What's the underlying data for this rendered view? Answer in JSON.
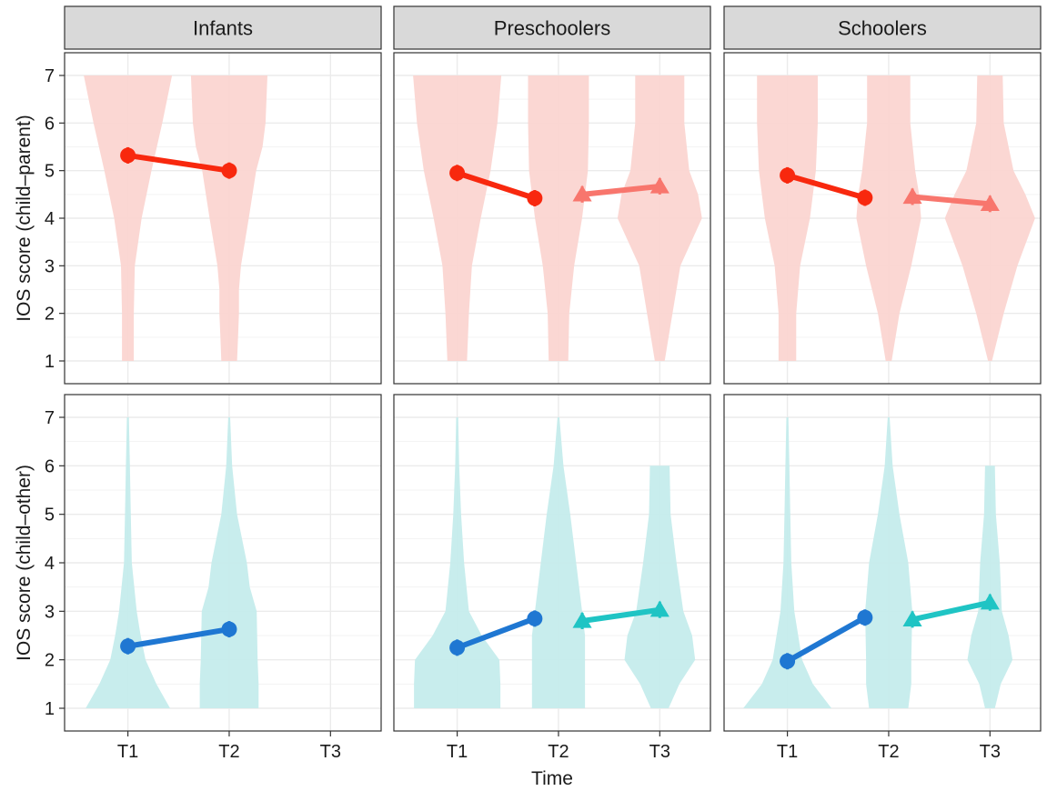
{
  "chart_data": {
    "type": "violin",
    "xlabel": "Time",
    "x_categories": [
      "T1",
      "T2",
      "T3"
    ],
    "y_ticks": [
      "1",
      "2",
      "3",
      "4",
      "5",
      "6",
      "7"
    ],
    "ylim": [
      1,
      7
    ],
    "grid": true,
    "facet_columns": [
      "Infants",
      "Preschoolers",
      "Schoolers"
    ],
    "facet_rows": [
      {
        "key": "parent",
        "ylabel": "IOS score (child–parent)"
      },
      {
        "key": "other",
        "ylabel": "IOS score (child–other)"
      }
    ],
    "colors": {
      "parent_line_1": "#f8280e",
      "parent_line_2": "#f8766d",
      "parent_violin": "#fbd5d1",
      "other_line_1": "#1f77d2",
      "other_line_2": "#1fc4c4",
      "other_violin": "#c5ecec",
      "strip_fill": "#d9d9d9",
      "grid": "#ebebeb"
    },
    "panels": [
      {
        "row": "parent",
        "column": "Infants",
        "violins": [
          {
            "x": "T1",
            "min": 1,
            "max": 7,
            "width_at": [
              [
                1,
                0.12
              ],
              [
                2,
                0.12
              ],
              [
                3,
                0.14
              ],
              [
                4,
                0.28
              ],
              [
                5,
                0.48
              ],
              [
                6,
                0.7
              ],
              [
                7,
                0.9
              ]
            ]
          },
          {
            "x": "T2",
            "min": 1,
            "max": 7,
            "width_at": [
              [
                1,
                0.16
              ],
              [
                1.5,
                0.18
              ],
              [
                2,
                0.2
              ],
              [
                2.5,
                0.2
              ],
              [
                3,
                0.24
              ],
              [
                4,
                0.4
              ],
              [
                5,
                0.55
              ],
              [
                5.5,
                0.68
              ],
              [
                6,
                0.74
              ],
              [
                7,
                0.78
              ]
            ]
          }
        ],
        "series": [
          {
            "name": "T1–T2",
            "marker": "circle",
            "points": [
              {
                "x": "T1",
                "y": 5.32
              },
              {
                "x": "T2",
                "y": 5.0
              }
            ]
          }
        ]
      },
      {
        "row": "parent",
        "column": "Preschoolers",
        "violins": [
          {
            "x": "T1",
            "min": 1,
            "max": 7,
            "width_at": [
              [
                1,
                0.2
              ],
              [
                2,
                0.24
              ],
              [
                3,
                0.3
              ],
              [
                4,
                0.48
              ],
              [
                5,
                0.68
              ],
              [
                6,
                0.82
              ],
              [
                7,
                0.9
              ]
            ]
          },
          {
            "x": "T2",
            "min": 1,
            "max": 7,
            "width_at": [
              [
                1,
                0.2
              ],
              [
                2,
                0.22
              ],
              [
                3,
                0.32
              ],
              [
                4,
                0.48
              ],
              [
                4.5,
                0.54
              ],
              [
                5,
                0.6
              ],
              [
                6,
                0.62
              ],
              [
                7,
                0.62
              ]
            ]
          },
          {
            "x": "T3",
            "min": 1,
            "max": 7,
            "width_at": [
              [
                1,
                0.1
              ],
              [
                2,
                0.26
              ],
              [
                3,
                0.42
              ],
              [
                4,
                0.86
              ],
              [
                4.5,
                0.78
              ],
              [
                5,
                0.6
              ],
              [
                6,
                0.5
              ],
              [
                7,
                0.5
              ]
            ]
          }
        ],
        "series": [
          {
            "name": "T1–T2",
            "marker": "circle",
            "points": [
              {
                "x": "T1",
                "y": 4.95
              },
              {
                "x": "T2",
                "y": 4.42
              }
            ]
          },
          {
            "name": "T2–T3",
            "marker": "triangle",
            "points": [
              {
                "x": "T2",
                "y": 4.5
              },
              {
                "x": "T3",
                "y": 4.67
              }
            ]
          }
        ]
      },
      {
        "row": "parent",
        "column": "Schoolers",
        "violins": [
          {
            "x": "T1",
            "min": 1,
            "max": 7,
            "width_at": [
              [
                1,
                0.18
              ],
              [
                2,
                0.18
              ],
              [
                3,
                0.26
              ],
              [
                4,
                0.46
              ],
              [
                5,
                0.58
              ],
              [
                6,
                0.62
              ],
              [
                7,
                0.62
              ]
            ]
          },
          {
            "x": "T2",
            "min": 1,
            "max": 7,
            "width_at": [
              [
                1,
                0.06
              ],
              [
                2,
                0.22
              ],
              [
                3,
                0.46
              ],
              [
                4,
                0.66
              ],
              [
                4.5,
                0.62
              ],
              [
                5,
                0.54
              ],
              [
                6,
                0.44
              ],
              [
                7,
                0.44
              ]
            ]
          },
          {
            "x": "T3",
            "min": 1,
            "max": 7,
            "width_at": [
              [
                1,
                0.04
              ],
              [
                2,
                0.28
              ],
              [
                3,
                0.56
              ],
              [
                4,
                0.92
              ],
              [
                4.5,
                0.72
              ],
              [
                5,
                0.48
              ],
              [
                6,
                0.28
              ],
              [
                7,
                0.26
              ]
            ]
          }
        ],
        "series": [
          {
            "name": "T1–T2",
            "marker": "circle",
            "points": [
              {
                "x": "T1",
                "y": 4.9
              },
              {
                "x": "T2",
                "y": 4.43
              }
            ]
          },
          {
            "name": "T2–T3",
            "marker": "triangle",
            "points": [
              {
                "x": "T2",
                "y": 4.45
              },
              {
                "x": "T3",
                "y": 4.3
              }
            ]
          }
        ]
      },
      {
        "row": "other",
        "column": "Infants",
        "violins": [
          {
            "x": "T1",
            "min": 1,
            "max": 7,
            "width_at": [
              [
                1,
                0.86
              ],
              [
                1.5,
                0.58
              ],
              [
                2,
                0.36
              ],
              [
                2.5,
                0.26
              ],
              [
                3,
                0.18
              ],
              [
                4,
                0.08
              ],
              [
                5,
                0.06
              ],
              [
                6,
                0.04
              ],
              [
                7,
                0.02
              ]
            ]
          },
          {
            "x": "T2",
            "min": 1,
            "max": 7,
            "width_at": [
              [
                1,
                0.6
              ],
              [
                1.5,
                0.6
              ],
              [
                2,
                0.58
              ],
              [
                3,
                0.56
              ],
              [
                3.5,
                0.42
              ],
              [
                4,
                0.36
              ],
              [
                4.5,
                0.26
              ],
              [
                5,
                0.16
              ],
              [
                6,
                0.06
              ],
              [
                7,
                0.02
              ]
            ]
          }
        ],
        "series": [
          {
            "name": "T1–T2",
            "marker": "circle",
            "points": [
              {
                "x": "T1",
                "y": 2.28
              },
              {
                "x": "T2",
                "y": 2.63
              }
            ]
          }
        ]
      },
      {
        "row": "other",
        "column": "Preschoolers",
        "violins": [
          {
            "x": "T1",
            "min": 1,
            "max": 7,
            "width_at": [
              [
                1,
                0.88
              ],
              [
                1.5,
                0.88
              ],
              [
                2,
                0.86
              ],
              [
                2.5,
                0.5
              ],
              [
                3,
                0.24
              ],
              [
                4,
                0.14
              ],
              [
                5,
                0.08
              ],
              [
                6,
                0.04
              ],
              [
                7,
                0.02
              ]
            ]
          },
          {
            "x": "T2",
            "min": 1,
            "max": 7,
            "width_at": [
              [
                1,
                0.54
              ],
              [
                2,
                0.54
              ],
              [
                2.5,
                0.54
              ],
              [
                3,
                0.48
              ],
              [
                4,
                0.36
              ],
              [
                5,
                0.24
              ],
              [
                6,
                0.1
              ],
              [
                7,
                0.02
              ]
            ]
          },
          {
            "x": "T3",
            "min": 1,
            "max": 6,
            "width_at": [
              [
                1,
                0.18
              ],
              [
                1.5,
                0.4
              ],
              [
                2,
                0.72
              ],
              [
                2.5,
                0.66
              ],
              [
                3,
                0.48
              ],
              [
                4,
                0.34
              ],
              [
                5,
                0.22
              ],
              [
                6,
                0.2
              ]
            ]
          }
        ],
        "series": [
          {
            "name": "T1–T2",
            "marker": "circle",
            "points": [
              {
                "x": "T1",
                "y": 2.25
              },
              {
                "x": "T2",
                "y": 2.85
              }
            ]
          },
          {
            "name": "T2–T3",
            "marker": "triangle",
            "points": [
              {
                "x": "T2",
                "y": 2.8
              },
              {
                "x": "T3",
                "y": 3.03
              }
            ]
          }
        ]
      },
      {
        "row": "other",
        "column": "Schoolers",
        "violins": [
          {
            "x": "T1",
            "min": 1,
            "max": 7,
            "width_at": [
              [
                1,
                0.9
              ],
              [
                1.5,
                0.52
              ],
              [
                2,
                0.3
              ],
              [
                3,
                0.14
              ],
              [
                4,
                0.08
              ],
              [
                5,
                0.06
              ],
              [
                6,
                0.04
              ],
              [
                7,
                0.02
              ]
            ]
          },
          {
            "x": "T2",
            "min": 1,
            "max": 7,
            "width_at": [
              [
                1,
                0.4
              ],
              [
                1.5,
                0.46
              ],
              [
                2,
                0.46
              ],
              [
                3,
                0.48
              ],
              [
                4,
                0.4
              ],
              [
                5,
                0.22
              ],
              [
                6,
                0.08
              ],
              [
                7,
                0.02
              ]
            ]
          },
          {
            "x": "T3",
            "min": 1,
            "max": 6,
            "width_at": [
              [
                1,
                0.1
              ],
              [
                1.5,
                0.22
              ],
              [
                2,
                0.46
              ],
              [
                2.5,
                0.38
              ],
              [
                3,
                0.24
              ],
              [
                4,
                0.2
              ],
              [
                5,
                0.12
              ],
              [
                6,
                0.1
              ]
            ]
          }
        ],
        "series": [
          {
            "name": "T1–T2",
            "marker": "circle",
            "points": [
              {
                "x": "T1",
                "y": 1.97
              },
              {
                "x": "T2",
                "y": 2.87
              }
            ]
          },
          {
            "name": "T2–T3",
            "marker": "triangle",
            "points": [
              {
                "x": "T2",
                "y": 2.83
              },
              {
                "x": "T3",
                "y": 3.18
              }
            ]
          }
        ]
      }
    ]
  }
}
